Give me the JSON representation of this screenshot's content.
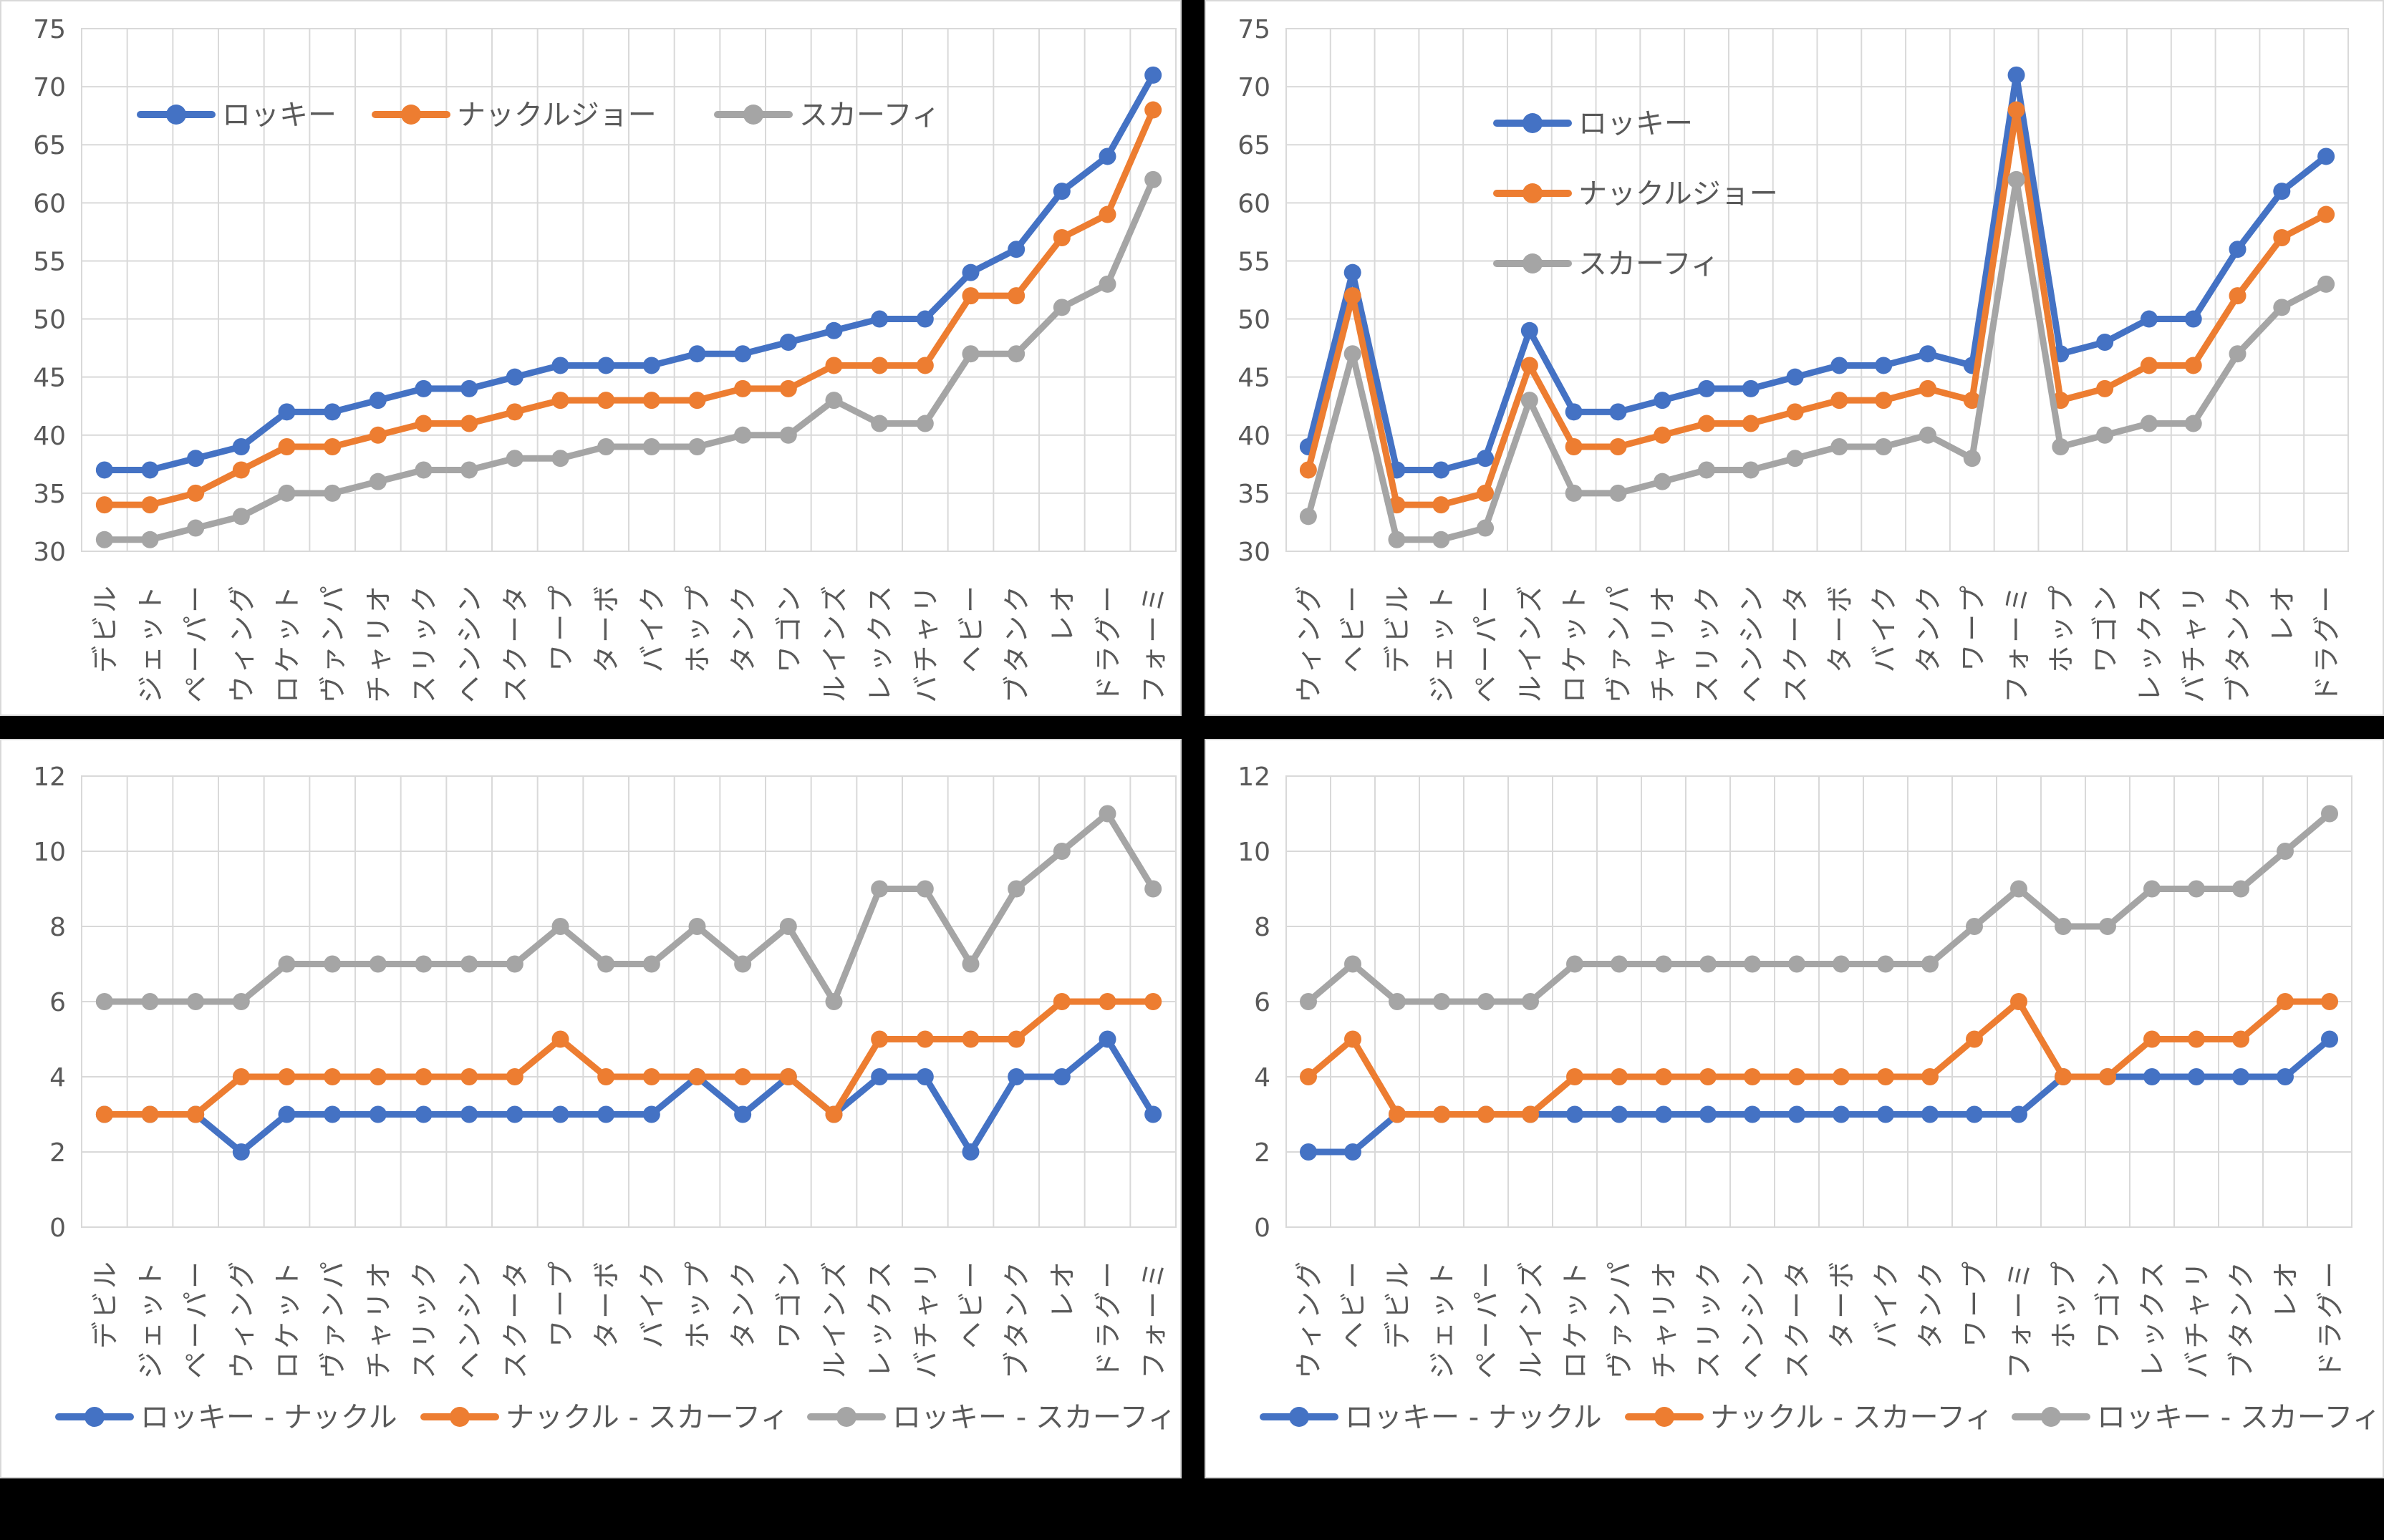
{
  "page": {
    "background": "#000000",
    "panel_background": "#FFFFFF"
  },
  "colors": {
    "series1": "#4472C4",
    "series2": "#ED7D31",
    "series3": "#A5A5A5",
    "grid": "#D9D9D9",
    "tick_text": "#595959"
  },
  "chart_data": [
    {
      "id": "top_left",
      "type": "line",
      "title": "",
      "legend_position": "inside-top-horizontal",
      "grid": true,
      "ylim": [
        30,
        75
      ],
      "y_step": 5,
      "categories": [
        "デビル",
        "ジェット",
        "ペーパー",
        "ウィング",
        "ロケット",
        "ヴァンパ",
        "チャリオ",
        "スリック",
        "ヘンシン",
        "スクータ",
        "ワープ",
        "ターボ",
        "バイク",
        "ホップ",
        "タンク",
        "ワゴン",
        "ルインズ",
        "レックス",
        "バチャリ",
        "ヘビー",
        "ブタンク",
        "レオ",
        "ドラグー",
        "フォーミ"
      ],
      "y_tick_labels": [
        "30",
        "35",
        "40",
        "45",
        "50",
        "55",
        "60",
        "65",
        "70",
        "75"
      ],
      "series": [
        {
          "name": "ロッキー",
          "color_key": "series1",
          "values": [
            37,
            37,
            38,
            39,
            42,
            42,
            43,
            44,
            44,
            45,
            46,
            46,
            46,
            47,
            47,
            48,
            49,
            50,
            50,
            54,
            56,
            61,
            64,
            71
          ]
        },
        {
          "name": "ナックルジョー",
          "color_key": "series2",
          "values": [
            34,
            34,
            35,
            37,
            39,
            39,
            40,
            41,
            41,
            42,
            43,
            43,
            43,
            43,
            44,
            44,
            46,
            46,
            46,
            52,
            52,
            57,
            59,
            68
          ]
        },
        {
          "name": "スカーフィ",
          "color_key": "series3",
          "values": [
            31,
            31,
            32,
            33,
            35,
            35,
            36,
            37,
            37,
            38,
            38,
            39,
            39,
            39,
            40,
            40,
            43,
            41,
            41,
            47,
            47,
            51,
            53,
            62
          ]
        }
      ]
    },
    {
      "id": "top_right",
      "type": "line",
      "title": "",
      "legend_position": "inside-top-vertical",
      "grid": true,
      "ylim": [
        30,
        75
      ],
      "y_step": 5,
      "categories": [
        "ウィング",
        "ヘビー",
        "デビル",
        "ジェット",
        "ペーパー",
        "ルインズ",
        "ロケット",
        "ヴァンパ",
        "チャリオ",
        "スリック",
        "ヘンシン",
        "スクータ",
        "ターボ",
        "バイク",
        "タンク",
        "ワープ",
        "フォーミ",
        "ホップ",
        "ワゴン",
        "レックス",
        "バチャリ",
        "ブタンク",
        "レオ",
        "ドラグー"
      ],
      "y_tick_labels": [
        "30",
        "35",
        "40",
        "45",
        "50",
        "55",
        "60",
        "65",
        "70",
        "75"
      ],
      "series": [
        {
          "name": "ロッキー",
          "color_key": "series1",
          "values": [
            39,
            54,
            37,
            37,
            38,
            49,
            42,
            42,
            43,
            44,
            44,
            45,
            46,
            46,
            47,
            46,
            71,
            47,
            48,
            50,
            50,
            56,
            61,
            64
          ]
        },
        {
          "name": "ナックルジョー",
          "color_key": "series2",
          "values": [
            37,
            52,
            34,
            34,
            35,
            46,
            39,
            39,
            40,
            41,
            41,
            42,
            43,
            43,
            44,
            43,
            68,
            43,
            44,
            46,
            46,
            52,
            57,
            59
          ]
        },
        {
          "name": "スカーフィ",
          "color_key": "series3",
          "values": [
            33,
            47,
            31,
            31,
            32,
            43,
            35,
            35,
            36,
            37,
            37,
            38,
            39,
            39,
            40,
            38,
            62,
            39,
            40,
            41,
            41,
            47,
            51,
            53
          ]
        }
      ]
    },
    {
      "id": "bottom_left",
      "type": "line",
      "title": "",
      "legend_position": "bottom-horizontal",
      "grid": true,
      "ylim": [
        0,
        12
      ],
      "y_step": 2,
      "categories": [
        "デビル",
        "ジェット",
        "ペーパー",
        "ウィング",
        "ロケット",
        "ヴァンパ",
        "チャリオ",
        "スリック",
        "ヘンシン",
        "スクータ",
        "ワープ",
        "ターボ",
        "バイク",
        "ホップ",
        "タンク",
        "ワゴン",
        "ルインズ",
        "レックス",
        "バチャリ",
        "ヘビー",
        "ブタンク",
        "レオ",
        "ドラグー",
        "フォーミ"
      ],
      "y_tick_labels": [
        "0",
        "2",
        "4",
        "6",
        "8",
        "10",
        "12"
      ],
      "series": [
        {
          "name": "ロッキー - ナックル",
          "color_key": "series1",
          "values": [
            3,
            3,
            3,
            2,
            3,
            3,
            3,
            3,
            3,
            3,
            3,
            3,
            3,
            4,
            3,
            4,
            3,
            4,
            4,
            2,
            4,
            4,
            5,
            3
          ]
        },
        {
          "name": "ナックル - スカーフィ",
          "color_key": "series2",
          "values": [
            3,
            3,
            3,
            4,
            4,
            4,
            4,
            4,
            4,
            4,
            5,
            4,
            4,
            4,
            4,
            4,
            3,
            5,
            5,
            5,
            5,
            6,
            6,
            6
          ]
        },
        {
          "name": "ロッキー - スカーフィ",
          "color_key": "series3",
          "values": [
            6,
            6,
            6,
            6,
            7,
            7,
            7,
            7,
            7,
            7,
            8,
            7,
            7,
            8,
            7,
            8,
            6,
            9,
            9,
            7,
            9,
            10,
            11,
            9
          ]
        }
      ]
    },
    {
      "id": "bottom_right",
      "type": "line",
      "title": "",
      "legend_position": "bottom-horizontal",
      "grid": true,
      "ylim": [
        0,
        12
      ],
      "y_step": 2,
      "categories": [
        "ウィング",
        "ヘビー",
        "デビル",
        "ジェット",
        "ペーパー",
        "ルインズ",
        "ロケット",
        "ヴァンパ",
        "チャリオ",
        "スリック",
        "ヘンシン",
        "スクータ",
        "ターボ",
        "バイク",
        "タンク",
        "ワープ",
        "フォーミ",
        "ホップ",
        "ワゴン",
        "レックス",
        "バチャリ",
        "ブタンク",
        "レオ",
        "ドラグー"
      ],
      "y_tick_labels": [
        "0",
        "2",
        "4",
        "6",
        "8",
        "10",
        "12"
      ],
      "series": [
        {
          "name": "ロッキー - ナックル",
          "color_key": "series1",
          "values": [
            2,
            2,
            3,
            3,
            3,
            3,
            3,
            3,
            3,
            3,
            3,
            3,
            3,
            3,
            3,
            3,
            3,
            4,
            4,
            4,
            4,
            4,
            4,
            5
          ]
        },
        {
          "name": "ナックル - スカーフィ",
          "color_key": "series2",
          "values": [
            4,
            5,
            3,
            3,
            3,
            3,
            4,
            4,
            4,
            4,
            4,
            4,
            4,
            4,
            4,
            5,
            6,
            4,
            4,
            5,
            5,
            5,
            6,
            6
          ]
        },
        {
          "name": "ロッキー - スカーフィ",
          "color_key": "series3",
          "values": [
            6,
            7,
            6,
            6,
            6,
            6,
            7,
            7,
            7,
            7,
            7,
            7,
            7,
            7,
            7,
            8,
            9,
            8,
            8,
            9,
            9,
            9,
            10,
            11
          ]
        }
      ]
    }
  ]
}
